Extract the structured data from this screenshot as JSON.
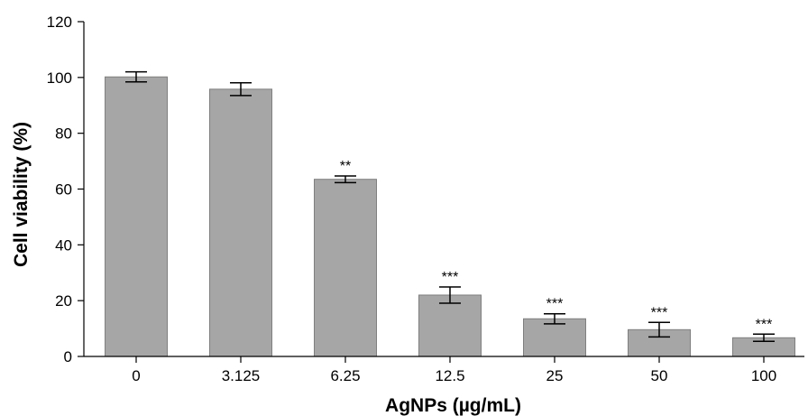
{
  "chart_data": {
    "type": "bar",
    "xlabel": "AgNPs (µg/mL)",
    "ylabel": "Cell viability (%)",
    "categories": [
      "0",
      "3.125",
      "6.25",
      "12.5",
      "25",
      "50",
      "100"
    ],
    "values": [
      100.2,
      95.8,
      63.5,
      22.0,
      13.5,
      9.6,
      6.7
    ],
    "error": [
      1.8,
      2.3,
      1.2,
      2.9,
      1.8,
      2.6,
      1.3
    ],
    "significance": [
      "",
      "",
      "**",
      "***",
      "***",
      "***",
      "***"
    ],
    "ylim": [
      0,
      120
    ],
    "yticks": [
      0,
      20,
      40,
      60,
      80,
      100,
      120
    ],
    "bar_color": "#a6a6a7",
    "bar_edge_color": "#7f7f7f",
    "grid": false,
    "legend": "none"
  }
}
